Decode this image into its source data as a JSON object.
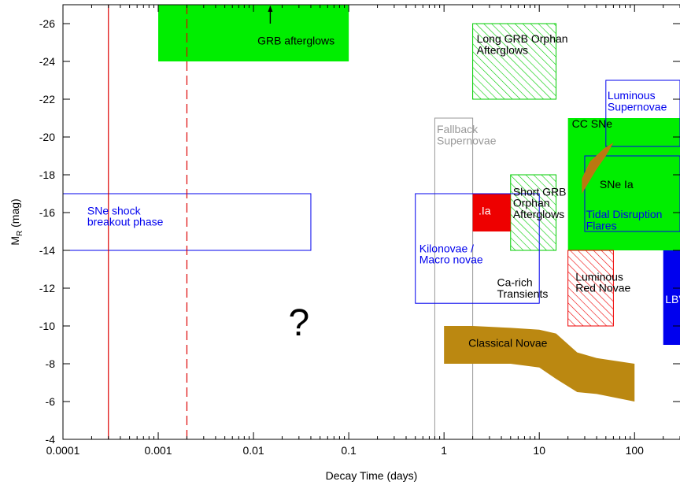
{
  "chart_data": {
    "type": "area",
    "title": "",
    "xlabel": "Decay Time (days)",
    "ylabel_main": "M",
    "ylabel_sub": "R",
    "ylabel_unit": " (mag)",
    "x_scale": "log",
    "xlim": [
      0.0001,
      300
    ],
    "ylim": [
      -4,
      -27
    ],
    "x_ticks": [
      0.0001,
      0.001,
      0.01,
      0.1,
      1,
      10,
      100
    ],
    "x_tick_labels": [
      "0.0001",
      "0.001",
      "0.01",
      "0.1",
      "1",
      "10",
      "100"
    ],
    "y_ticks": [
      -4,
      -6,
      -8,
      -10,
      -12,
      -14,
      -16,
      -18,
      -20,
      -22,
      -24,
      -26
    ],
    "y_tick_labels": [
      "-4",
      "-6",
      "-8",
      "-10",
      "-12",
      "-14",
      "-16",
      "-18",
      "-20",
      "-22",
      "-24",
      "-26"
    ],
    "grid": false,
    "vlines": [
      {
        "x": 0.0003,
        "style": "solid",
        "color": "#dd0000"
      },
      {
        "x": 0.002,
        "style": "dashed",
        "color": "#dd0000"
      }
    ],
    "regions": [
      {
        "name": "grb",
        "label": "GRB afterglows",
        "x": [
          0.001,
          0.1
        ],
        "y": [
          -24,
          -27
        ],
        "fill": "solid",
        "color": "#00ee00",
        "text_color": "#000000",
        "label_x": 0.011,
        "label_y": -24.9
      },
      {
        "name": "long-grb-orphan",
        "label": "Long GRB Orphan\nAfterglows",
        "x": [
          2,
          15
        ],
        "y": [
          -22,
          -26
        ],
        "fill": "hatch",
        "color": "#00cc00",
        "text_color": "#000000",
        "label_x": 2.2,
        "label_y": -25
      },
      {
        "name": "luminous-sne",
        "label": "Luminous\nSupernovae",
        "x": [
          50,
          300
        ],
        "y": [
          -19.5,
          -23
        ],
        "fill": "none",
        "color": "#0000ee",
        "text_color": "#0000ee",
        "label_x": 52,
        "label_y": -22
      },
      {
        "name": "fallback-sne",
        "label": "Fallback\nSupernovae",
        "x": [
          0.8,
          2
        ],
        "y": [
          -4,
          -21
        ],
        "fill": "none",
        "color": "#999999",
        "text_color": "#999999",
        "label_x": 0.84,
        "label_y": -20.2
      },
      {
        "name": "cc-sne",
        "label": "CC SNe",
        "x": [
          20,
          300
        ],
        "y": [
          -14,
          -21
        ],
        "fill": "solid",
        "color": "#00ee00",
        "text_color": "#000000",
        "label_x": 22,
        "label_y": -20.5
      },
      {
        "name": "tidal-disruption",
        "label": "Tidal Disruption\nFlares",
        "x": [
          30,
          300
        ],
        "y": [
          -15,
          -19
        ],
        "fill": "none",
        "color": "#0000ee",
        "text_color": "#0000ee",
        "label_x": 31,
        "label_y": -15.7
      },
      {
        "name": "sne-ia",
        "label": "SNe Ia",
        "x": [
          40,
          40
        ],
        "y": [
          -17.3,
          -17.3
        ],
        "fill": "none",
        "color": "#000000",
        "text_color": "#000000",
        "label_x": 43,
        "label_y": -17.3
      },
      {
        "name": "short-grb-orphan",
        "label": "Short GRB\nOrphan\nAfterglows",
        "x": [
          5,
          15
        ],
        "y": [
          -14,
          -18
        ],
        "fill": "hatch",
        "color": "#00cc00",
        "text_color": "#000000",
        "label_x": 5.3,
        "label_y": -16.9
      },
      {
        "name": "dot-ia",
        "label": ".Ia",
        "x": [
          2,
          5
        ],
        "y": [
          -15,
          -17
        ],
        "fill": "solid",
        "color": "#ee0000",
        "text_color": "#ffffff",
        "label_x": 2.3,
        "label_y": -15.9
      },
      {
        "name": "kilonovae",
        "label": "Kilonovae /\nMacro novae",
        "x": [
          0.5,
          10
        ],
        "y": [
          -11.2,
          -17
        ],
        "fill": "none",
        "color": "#0000ee",
        "text_color": "#0000ee",
        "label_x": 0.55,
        "label_y": -13.9
      },
      {
        "name": "shock-breakout",
        "label": "SNe shock\nbreakout phase",
        "x": [
          0.0001,
          0.04
        ],
        "y": [
          -14,
          -17
        ],
        "fill": "none",
        "color": "#0000ee",
        "text_color": "#0000ee",
        "label_x": 0.00018,
        "label_y": -15.9
      },
      {
        "name": "ca-rich",
        "label": "Ca-rich\nTransients",
        "x": [
          3,
          3
        ],
        "y": [
          -12,
          -12
        ],
        "fill": "none",
        "color": "#000000",
        "text_color": "#000000",
        "label_x": 3.6,
        "label_y": -12.1
      },
      {
        "name": "luminous-red-novae",
        "label": "Luminous\nRed Novae",
        "x": [
          20,
          60
        ],
        "y": [
          -10,
          -14
        ],
        "fill": "hatch",
        "color": "#ee0000",
        "text_color": "#000000",
        "label_x": 24,
        "label_y": -12.4
      },
      {
        "name": "lbv",
        "label": "LBV",
        "x": [
          200,
          300
        ],
        "y": [
          -9,
          -14
        ],
        "fill": "solid",
        "color": "#0000ee",
        "text_color": "#ffffff",
        "label_x": 210,
        "label_y": -11.2
      }
    ],
    "classical_novae": {
      "label": "Classical Novae",
      "color": "#bb8811",
      "upper_x": [
        1,
        2,
        5,
        10,
        15,
        25,
        40,
        100
      ],
      "upper_y": [
        -10,
        -10,
        -9.9,
        -9.8,
        -9.6,
        -8.6,
        -8.3,
        -8
      ],
      "lower_x": [
        1,
        2,
        5,
        10,
        15,
        25,
        40,
        100
      ],
      "lower_y": [
        -8,
        -8,
        -8,
        -7.8,
        -7.2,
        -6.5,
        -6.4,
        -6
      ],
      "label_x": 1.8,
      "label_y": -8.9
    },
    "sne_ia_band": {
      "color": "#bb7711",
      "points": [
        [
          28,
          -17
        ],
        [
          28,
          -17.8
        ],
        [
          34,
          -18.7
        ],
        [
          48,
          -19.4
        ],
        [
          60,
          -19.7
        ],
        [
          50,
          -19
        ],
        [
          40,
          -18.3
        ],
        [
          33,
          -17.6
        ]
      ]
    },
    "annotations": [
      {
        "name": "question-mark",
        "text": "?",
        "x": 0.03,
        "y": -9.5
      },
      {
        "name": "grb-arrow",
        "text": "",
        "x": 0.015,
        "y": -26,
        "y_to": -27
      }
    ]
  }
}
